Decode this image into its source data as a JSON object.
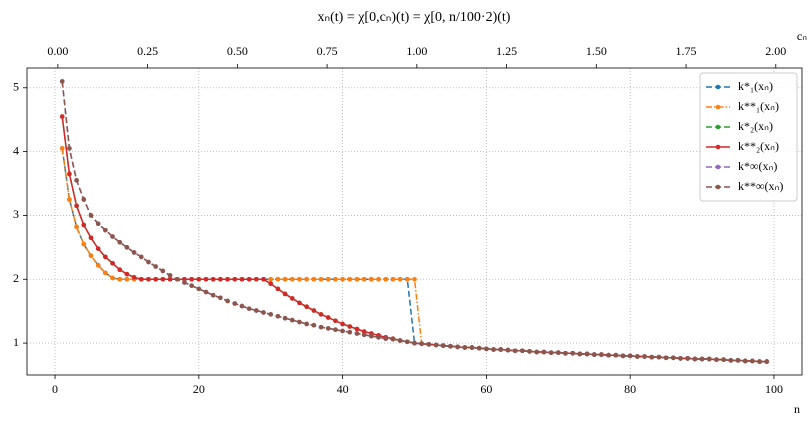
{
  "chart_data": {
    "type": "line",
    "title": "xₙ(t) = χ[0,cₙ)(t) = χ[0, n/100·2)(t)",
    "x_label": "n",
    "x2_label": "cₙ",
    "xlim": [
      -3.9,
      103.9
    ],
    "xticks": [
      0,
      20,
      40,
      60,
      80,
      100
    ],
    "x2lim": [
      -0.086,
      2.073
    ],
    "x2ticks": [
      {
        "value": 0,
        "label": "0.00"
      },
      0.25,
      {
        "value": 0.5,
        "label": "0.50"
      },
      0.75,
      {
        "value": 1,
        "label": "1.00"
      },
      1.25,
      {
        "value": 1.5,
        "label": "1.50"
      },
      1.75,
      {
        "value": 2,
        "label": "2.00"
      }
    ],
    "ylim": [
      0.5,
      5.31
    ],
    "yticks": [
      1,
      2,
      3,
      4,
      5
    ],
    "grid": true,
    "legend": "upper right",
    "x": [
      1,
      2,
      3,
      4,
      5,
      6,
      7,
      8,
      9,
      10,
      11,
      12,
      13,
      14,
      15,
      16,
      17,
      18,
      19,
      20,
      21,
      22,
      23,
      24,
      25,
      26,
      27,
      28,
      29,
      30,
      31,
      32,
      33,
      34,
      35,
      36,
      37,
      38,
      39,
      40,
      41,
      42,
      43,
      44,
      45,
      46,
      47,
      48,
      49,
      50,
      51,
      52,
      53,
      54,
      55,
      56,
      57,
      58,
      59,
      60,
      61,
      62,
      63,
      64,
      65,
      66,
      67,
      68,
      69,
      70,
      71,
      72,
      73,
      74,
      75,
      76,
      77,
      78,
      79,
      80,
      81,
      82,
      83,
      84,
      85,
      86,
      87,
      88,
      89,
      90,
      91,
      92,
      93,
      94,
      95,
      96,
      97,
      98,
      99
    ],
    "series": [
      {
        "name": "k*₁(xₙ)",
        "color": "#1f77b4",
        "linestyle": "dashed",
        "values": [
          4.05,
          3.25,
          2.82,
          2.55,
          2.37,
          2.22,
          2.1,
          2.02,
          2,
          2,
          2,
          2,
          2,
          2,
          2,
          2,
          2,
          2,
          2,
          2,
          2,
          2,
          2,
          2,
          2,
          2,
          2,
          2,
          2,
          2,
          2,
          2,
          2,
          2,
          2,
          2,
          2,
          2,
          2,
          2,
          2,
          2,
          2,
          2,
          2,
          2,
          2,
          2,
          2,
          1.0,
          0.99,
          0.98,
          0.97,
          0.96,
          0.95,
          0.94,
          0.93,
          0.93,
          0.92,
          0.91,
          0.9,
          0.9,
          0.89,
          0.88,
          0.88,
          0.87,
          0.86,
          0.86,
          0.85,
          0.85,
          0.84,
          0.84,
          0.83,
          0.83,
          0.82,
          0.82,
          0.81,
          0.81,
          0.8,
          0.8,
          0.79,
          0.79,
          0.78,
          0.78,
          0.77,
          0.77,
          0.76,
          0.76,
          0.75,
          0.75,
          0.75,
          0.74,
          0.74,
          0.73,
          0.73,
          0.72,
          0.72,
          0.71,
          0.71
        ]
      },
      {
        "name": "k**₁(xₙ)",
        "color": "#ff7f0e",
        "linestyle": "dashdot",
        "values": [
          4.05,
          3.25,
          2.82,
          2.55,
          2.37,
          2.22,
          2.1,
          2.02,
          2,
          2,
          2,
          2,
          2,
          2,
          2,
          2,
          2,
          2,
          2,
          2,
          2,
          2,
          2,
          2,
          2,
          2,
          2,
          2,
          2,
          2,
          2,
          2,
          2,
          2,
          2,
          2,
          2,
          2,
          2,
          2,
          2,
          2,
          2,
          2,
          2,
          2,
          2,
          2,
          2,
          2,
          0.99,
          0.98,
          0.97,
          0.96,
          0.95,
          0.94,
          0.93,
          0.93,
          0.92,
          0.91,
          0.9,
          0.9,
          0.89,
          0.88,
          0.88,
          0.87,
          0.86,
          0.86,
          0.85,
          0.85,
          0.84,
          0.84,
          0.83,
          0.83,
          0.82,
          0.82,
          0.81,
          0.81,
          0.8,
          0.8,
          0.79,
          0.79,
          0.78,
          0.78,
          0.77,
          0.77,
          0.76,
          0.76,
          0.75,
          0.75,
          0.75,
          0.74,
          0.74,
          0.73,
          0.73,
          0.72,
          0.72,
          0.71,
          0.71
        ]
      },
      {
        "name": "k*₂(xₙ)",
        "color": "#2ca02c",
        "linestyle": "dashed",
        "values": [
          4.55,
          3.65,
          3.15,
          2.85,
          2.65,
          2.48,
          2.35,
          2.25,
          2.15,
          2.08,
          2.03,
          2,
          2,
          2,
          2,
          2,
          2,
          2,
          2,
          2,
          2,
          2,
          2,
          2,
          2,
          2,
          2,
          2,
          2,
          1.93,
          1.85,
          1.77,
          1.7,
          1.63,
          1.57,
          1.51,
          1.45,
          1.4,
          1.35,
          1.3,
          1.26,
          1.22,
          1.18,
          1.15,
          1.12,
          1.09,
          1.07,
          1.04,
          1.02,
          1.0,
          0.99,
          0.98,
          0.97,
          0.96,
          0.95,
          0.94,
          0.93,
          0.93,
          0.92,
          0.91,
          0.9,
          0.9,
          0.89,
          0.88,
          0.88,
          0.87,
          0.86,
          0.86,
          0.85,
          0.85,
          0.84,
          0.84,
          0.83,
          0.83,
          0.82,
          0.82,
          0.81,
          0.81,
          0.8,
          0.8,
          0.79,
          0.79,
          0.78,
          0.78,
          0.77,
          0.77,
          0.76,
          0.76,
          0.75,
          0.75,
          0.75,
          0.74,
          0.74,
          0.73,
          0.73,
          0.72,
          0.72,
          0.71,
          0.71
        ]
      },
      {
        "name": "k**₂(xₙ)",
        "color": "#d62728",
        "linestyle": "solid",
        "values": [
          4.55,
          3.65,
          3.15,
          2.85,
          2.65,
          2.48,
          2.35,
          2.25,
          2.15,
          2.08,
          2.03,
          2,
          2,
          2,
          2,
          2,
          2,
          2,
          2,
          2,
          2,
          2,
          2,
          2,
          2,
          2,
          2,
          2,
          2,
          1.93,
          1.85,
          1.77,
          1.7,
          1.63,
          1.57,
          1.51,
          1.45,
          1.4,
          1.35,
          1.3,
          1.26,
          1.22,
          1.18,
          1.15,
          1.12,
          1.09,
          1.07,
          1.04,
          1.02,
          1.0,
          0.99,
          0.98,
          0.97,
          0.96,
          0.95,
          0.94,
          0.93,
          0.93,
          0.92,
          0.91,
          0.9,
          0.9,
          0.89,
          0.88,
          0.88,
          0.87,
          0.86,
          0.86,
          0.85,
          0.85,
          0.84,
          0.84,
          0.83,
          0.83,
          0.82,
          0.82,
          0.81,
          0.81,
          0.8,
          0.8,
          0.79,
          0.79,
          0.78,
          0.78,
          0.77,
          0.77,
          0.76,
          0.76,
          0.75,
          0.75,
          0.75,
          0.74,
          0.74,
          0.73,
          0.73,
          0.72,
          0.72,
          0.71,
          0.71
        ]
      },
      {
        "name": "k*∞(xₙ)",
        "color": "#9467bd",
        "linestyle": "dashed",
        "values": [
          5.1,
          4.05,
          3.55,
          3.25,
          3.0,
          2.87,
          2.77,
          2.67,
          2.58,
          2.5,
          2.42,
          2.35,
          2.27,
          2.2,
          2.13,
          2.06,
          2.0,
          1.95,
          1.9,
          1.85,
          1.8,
          1.75,
          1.71,
          1.66,
          1.62,
          1.58,
          1.54,
          1.51,
          1.48,
          1.45,
          1.42,
          1.39,
          1.36,
          1.33,
          1.3,
          1.28,
          1.25,
          1.23,
          1.21,
          1.19,
          1.17,
          1.15,
          1.13,
          1.11,
          1.09,
          1.07,
          1.06,
          1.04,
          1.02,
          1.0,
          0.99,
          0.98,
          0.97,
          0.96,
          0.95,
          0.94,
          0.93,
          0.93,
          0.92,
          0.91,
          0.9,
          0.9,
          0.89,
          0.88,
          0.88,
          0.87,
          0.86,
          0.86,
          0.85,
          0.85,
          0.84,
          0.84,
          0.83,
          0.83,
          0.82,
          0.82,
          0.81,
          0.81,
          0.8,
          0.8,
          0.79,
          0.79,
          0.78,
          0.78,
          0.77,
          0.77,
          0.76,
          0.76,
          0.75,
          0.75,
          0.75,
          0.74,
          0.74,
          0.73,
          0.73,
          0.72,
          0.72,
          0.71,
          0.71
        ]
      },
      {
        "name": "k**∞(xₙ)",
        "color": "#8c564b",
        "linestyle": "dashed",
        "values": [
          5.1,
          4.05,
          3.55,
          3.25,
          3.0,
          2.87,
          2.77,
          2.67,
          2.58,
          2.5,
          2.42,
          2.35,
          2.27,
          2.2,
          2.13,
          2.06,
          2.0,
          1.95,
          1.9,
          1.85,
          1.8,
          1.75,
          1.71,
          1.66,
          1.62,
          1.58,
          1.54,
          1.51,
          1.48,
          1.45,
          1.42,
          1.39,
          1.36,
          1.33,
          1.3,
          1.28,
          1.25,
          1.23,
          1.21,
          1.19,
          1.17,
          1.15,
          1.13,
          1.11,
          1.09,
          1.07,
          1.06,
          1.04,
          1.02,
          1.0,
          0.99,
          0.98,
          0.97,
          0.96,
          0.95,
          0.94,
          0.93,
          0.93,
          0.92,
          0.91,
          0.9,
          0.9,
          0.89,
          0.88,
          0.88,
          0.87,
          0.86,
          0.86,
          0.85,
          0.85,
          0.84,
          0.84,
          0.83,
          0.83,
          0.82,
          0.82,
          0.81,
          0.81,
          0.8,
          0.8,
          0.79,
          0.79,
          0.78,
          0.78,
          0.77,
          0.77,
          0.76,
          0.76,
          0.75,
          0.75,
          0.75,
          0.74,
          0.74,
          0.73,
          0.73,
          0.72,
          0.72,
          0.71,
          0.71
        ]
      }
    ]
  }
}
